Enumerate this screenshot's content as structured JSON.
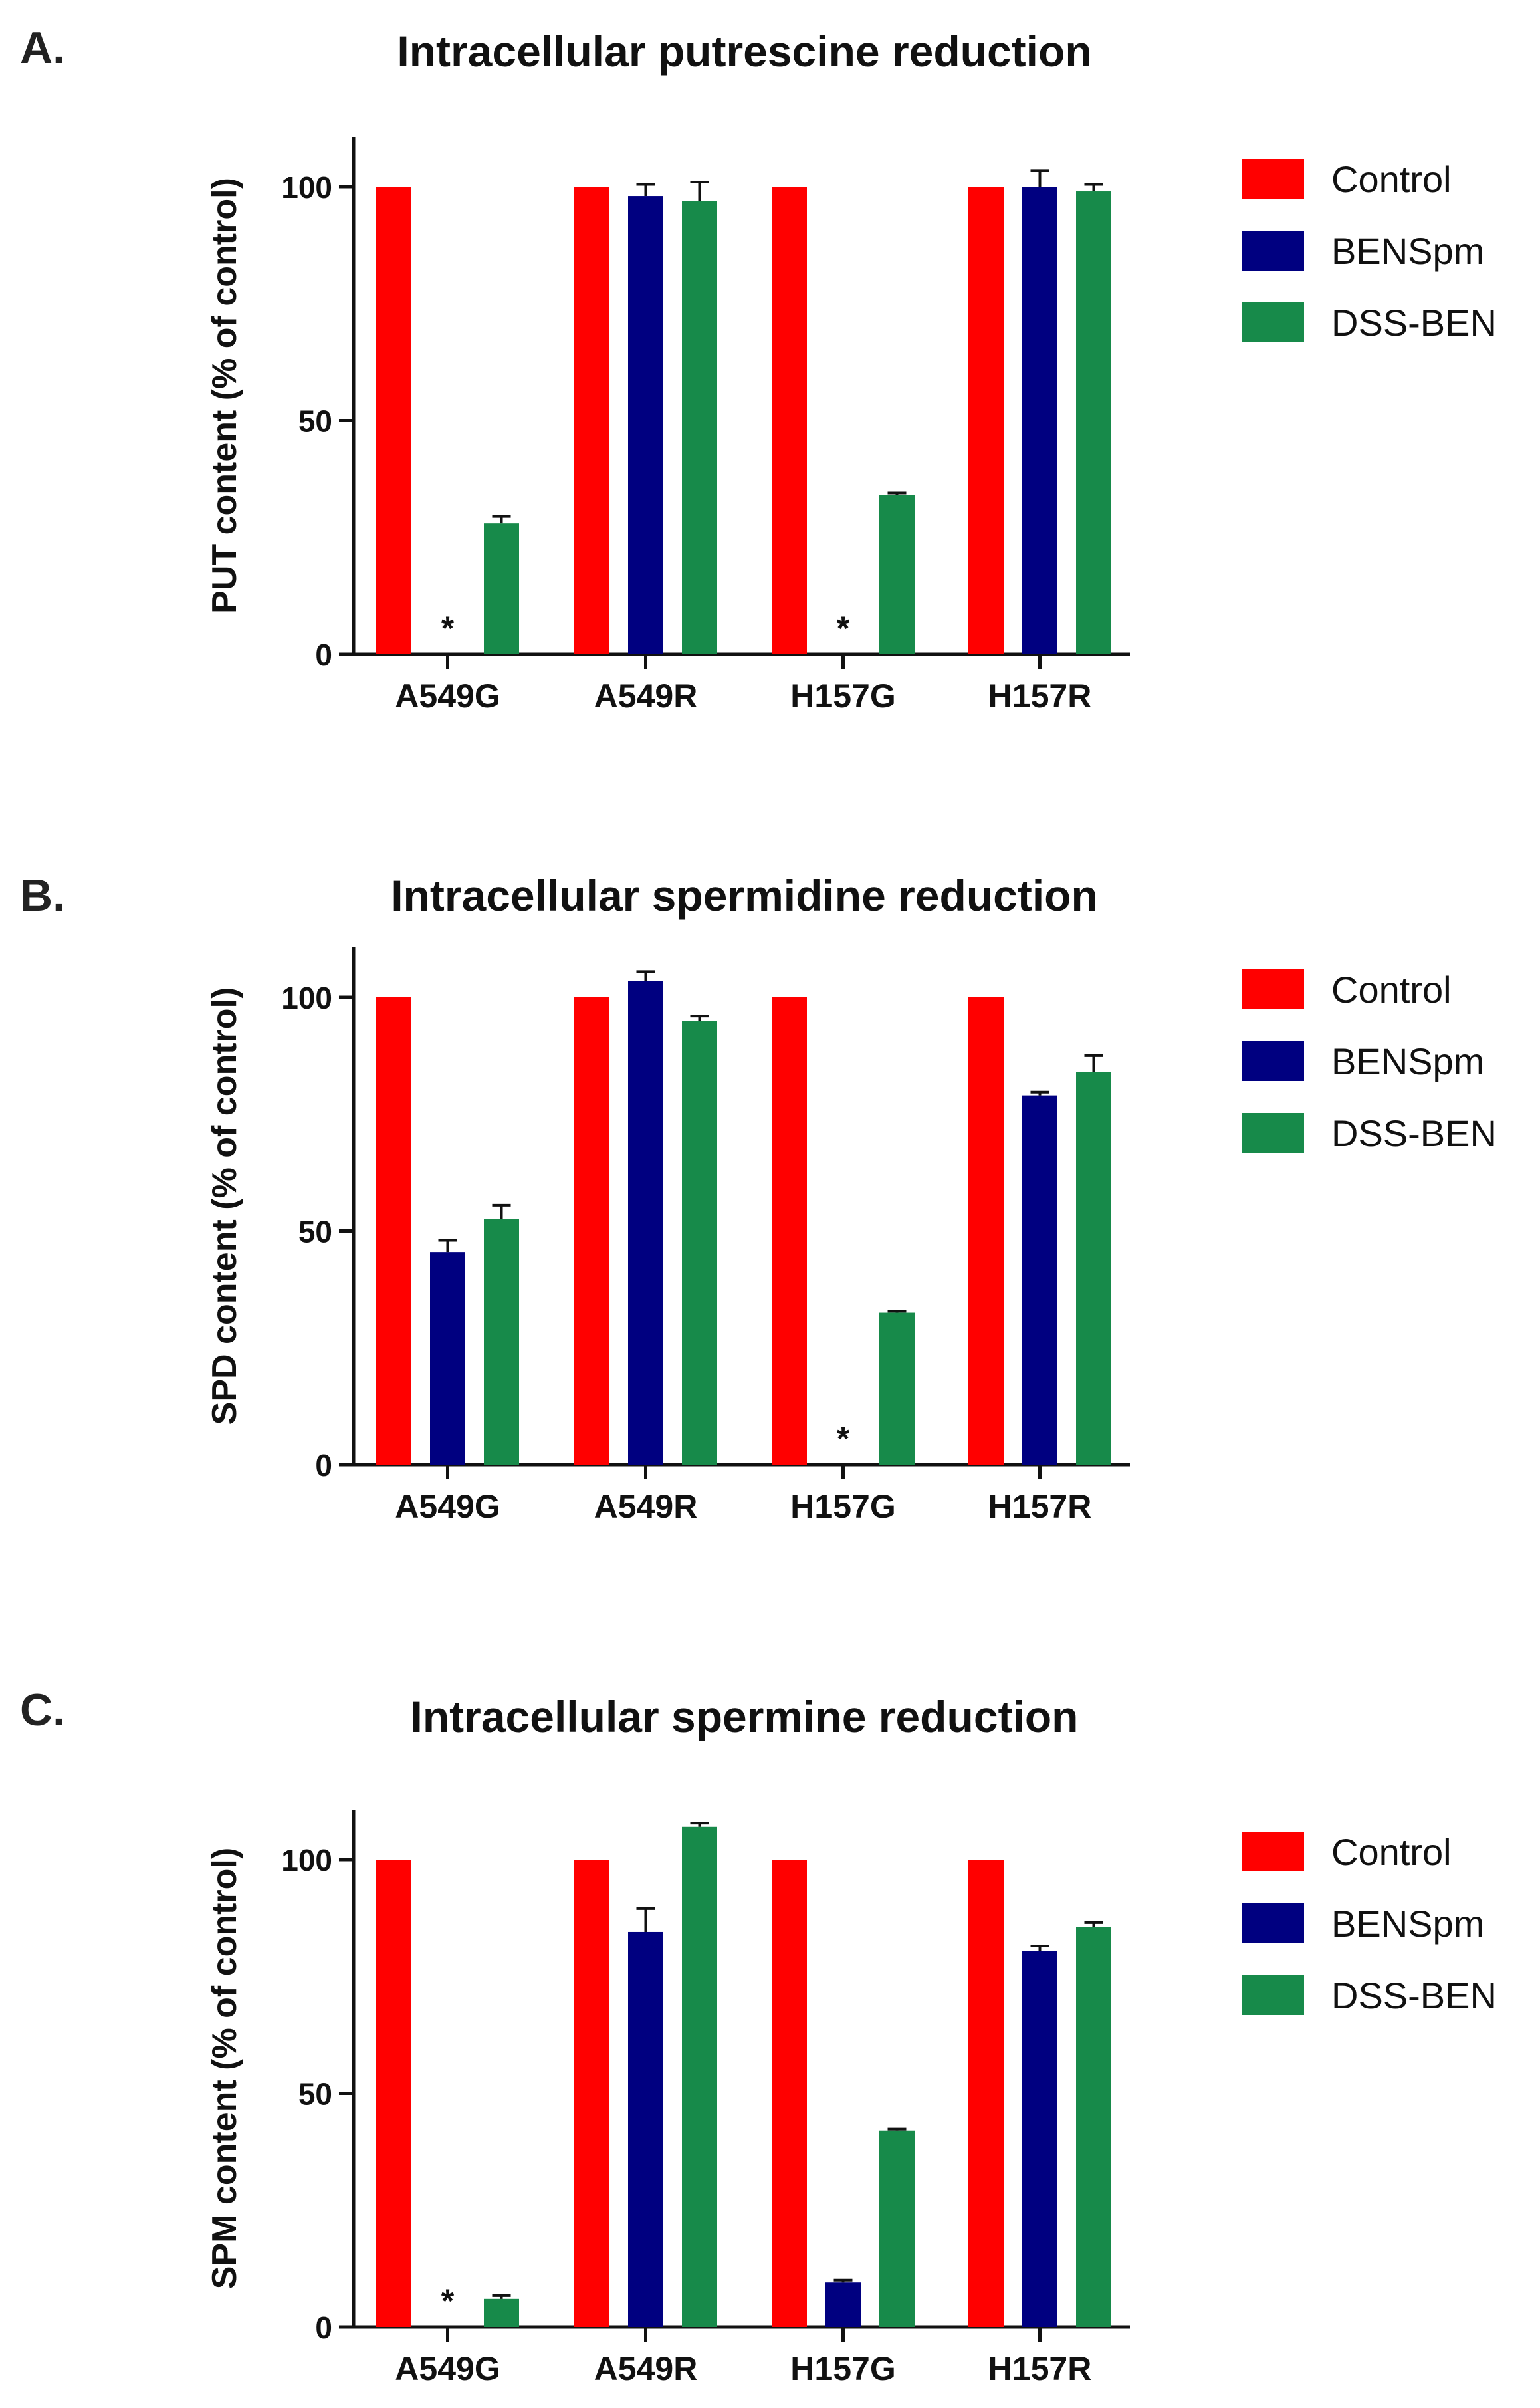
{
  "colors": {
    "control": "#ff0000",
    "bensp": "#000080",
    "dssben": "#178a4a"
  },
  "chart_data": [
    {
      "type": "bar",
      "panel_label": "A.",
      "title": "Intracellular putrescine reduction",
      "xlabel": "",
      "ylabel": "PUT content (% of control)",
      "ylim": [
        0,
        110
      ],
      "yticks": [
        0,
        50,
        100
      ],
      "categories": [
        "A549G",
        "A549R",
        "H157G",
        "H157R"
      ],
      "series": [
        {
          "name": "Control",
          "values": [
            100,
            100,
            100,
            100
          ],
          "errors": [
            0,
            0,
            0,
            0
          ]
        },
        {
          "name": "BENSpm",
          "values": [
            0,
            98,
            0,
            100
          ],
          "errors": [
            0,
            2.5,
            0,
            3.5
          ]
        },
        {
          "name": "DSS-BEN",
          "values": [
            28,
            97,
            34,
            99
          ],
          "errors": [
            1.5,
            4,
            0.5,
            1.5
          ]
        }
      ],
      "annotations": [
        {
          "text": "*",
          "category": "A549G",
          "series": "BENSpm"
        },
        {
          "text": "*",
          "category": "H157G",
          "series": "BENSpm"
        }
      ],
      "legend": "right"
    },
    {
      "type": "bar",
      "panel_label": "B.",
      "title": "Intracellular spermidine reduction",
      "xlabel": "",
      "ylabel": "SPD content (% of control)",
      "ylim": [
        0,
        110
      ],
      "yticks": [
        0,
        50,
        100
      ],
      "categories": [
        "A549G",
        "A549R",
        "H157G",
        "H157R"
      ],
      "series": [
        {
          "name": "Control",
          "values": [
            100,
            100,
            100,
            100
          ],
          "errors": [
            0,
            0,
            0,
            0
          ]
        },
        {
          "name": "BENSpm",
          "values": [
            45.5,
            103.5,
            0,
            79
          ],
          "errors": [
            2.5,
            2,
            0,
            0.7
          ]
        },
        {
          "name": "DSS-BEN",
          "values": [
            52.5,
            95,
            32.5,
            84
          ],
          "errors": [
            3,
            1,
            0.3,
            3.5
          ]
        }
      ],
      "annotations": [
        {
          "text": "*",
          "category": "H157G",
          "series": "BENSpm"
        }
      ],
      "legend": "right"
    },
    {
      "type": "bar",
      "panel_label": "C.",
      "title": "Intracellular spermine reduction",
      "xlabel": "",
      "ylabel": "SPM content (% of control)",
      "ylim": [
        0,
        110
      ],
      "yticks": [
        0,
        50,
        100
      ],
      "categories": [
        "A549G",
        "A549R",
        "H157G",
        "H157R"
      ],
      "series": [
        {
          "name": "Control",
          "values": [
            100,
            100,
            100,
            100
          ],
          "errors": [
            0,
            0,
            0,
            0
          ]
        },
        {
          "name": "BENSpm",
          "values": [
            0,
            84.5,
            9.5,
            80.5
          ],
          "errors": [
            0,
            5,
            0.5,
            1
          ]
        },
        {
          "name": "DSS-BEN",
          "values": [
            6,
            107,
            42,
            85.5
          ],
          "errors": [
            0.7,
            0.8,
            0.3,
            1
          ]
        }
      ],
      "annotations": [
        {
          "text": "*",
          "category": "A549G",
          "series": "BENSpm"
        }
      ],
      "legend": "right"
    }
  ]
}
